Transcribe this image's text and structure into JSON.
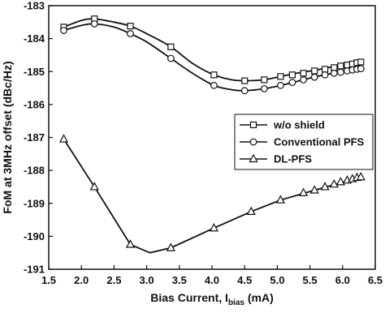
{
  "chart_data": {
    "type": "line",
    "xlabel": "Bias Current, I",
    "xlabel_sub": "bias",
    "xlabel_unit": " (mA)",
    "ylabel": "FoM at 3MHz offset (dBc/Hz)",
    "xlim": [
      1.5,
      6.5
    ],
    "ylim": [
      -191,
      -183
    ],
    "x_ticks": [
      1.5,
      2.0,
      2.5,
      3.0,
      3.5,
      4.0,
      4.5,
      5.0,
      5.5,
      6.0,
      6.5
    ],
    "x_tick_labels": [
      "1.5",
      "2.0",
      "2.5",
      "3.0",
      "3.5",
      "4.0",
      "4.5",
      "5.0",
      "5.5",
      "6.0",
      "6.5"
    ],
    "y_ticks": [
      -183,
      -184,
      -185,
      -186,
      -187,
      -188,
      -189,
      -190,
      -191
    ],
    "y_tick_labels": [
      "-183",
      "-184",
      "-185",
      "-186",
      "-187",
      "-188",
      "-189",
      "-190",
      "-191"
    ],
    "grid": false,
    "legend_position": "center-right",
    "series": [
      {
        "name": "w/o shield",
        "marker": "square",
        "curve": [
          [
            1.73,
            -183.65
          ],
          [
            2.0,
            -183.45
          ],
          [
            2.2,
            -183.4
          ],
          [
            2.5,
            -183.5
          ],
          [
            2.75,
            -183.62
          ],
          [
            3.0,
            -183.85
          ],
          [
            3.37,
            -184.25
          ],
          [
            3.7,
            -184.75
          ],
          [
            4.03,
            -185.1
          ],
          [
            4.3,
            -185.25
          ],
          [
            4.5,
            -185.28
          ],
          [
            4.8,
            -185.25
          ],
          [
            5.05,
            -185.15
          ],
          [
            5.3,
            -185.05
          ],
          [
            5.6,
            -184.95
          ],
          [
            6.0,
            -184.8
          ],
          [
            6.3,
            -184.7
          ]
        ],
        "markers": [
          [
            1.73,
            -183.65
          ],
          [
            2.2,
            -183.4
          ],
          [
            2.75,
            -183.62
          ],
          [
            3.37,
            -184.25
          ],
          [
            4.03,
            -185.1
          ],
          [
            4.5,
            -185.28
          ],
          [
            4.8,
            -185.25
          ],
          [
            5.05,
            -185.15
          ],
          [
            5.23,
            -185.1
          ],
          [
            5.4,
            -185.05
          ],
          [
            5.57,
            -184.98
          ],
          [
            5.73,
            -184.93
          ],
          [
            5.87,
            -184.88
          ],
          [
            5.97,
            -184.83
          ],
          [
            6.07,
            -184.8
          ],
          [
            6.15,
            -184.77
          ],
          [
            6.22,
            -184.73
          ],
          [
            6.28,
            -184.71
          ]
        ]
      },
      {
        "name": "Conventional PFS",
        "marker": "circle",
        "curve": [
          [
            1.73,
            -183.75
          ],
          [
            2.0,
            -183.6
          ],
          [
            2.2,
            -183.55
          ],
          [
            2.5,
            -183.65
          ],
          [
            2.75,
            -183.85
          ],
          [
            3.0,
            -184.1
          ],
          [
            3.37,
            -184.6
          ],
          [
            3.7,
            -185.05
          ],
          [
            4.03,
            -185.42
          ],
          [
            4.3,
            -185.55
          ],
          [
            4.5,
            -185.58
          ],
          [
            4.8,
            -185.52
          ],
          [
            5.05,
            -185.42
          ],
          [
            5.3,
            -185.3
          ],
          [
            5.6,
            -185.15
          ],
          [
            6.0,
            -185.0
          ],
          [
            6.3,
            -184.9
          ]
        ],
        "markers": [
          [
            1.73,
            -183.75
          ],
          [
            2.2,
            -183.55
          ],
          [
            2.75,
            -183.85
          ],
          [
            3.37,
            -184.6
          ],
          [
            4.03,
            -185.42
          ],
          [
            4.5,
            -185.58
          ],
          [
            4.8,
            -185.52
          ],
          [
            5.05,
            -185.42
          ],
          [
            5.23,
            -185.33
          ],
          [
            5.4,
            -185.25
          ],
          [
            5.57,
            -185.17
          ],
          [
            5.73,
            -185.1
          ],
          [
            5.87,
            -185.05
          ],
          [
            5.97,
            -185.02
          ],
          [
            6.07,
            -184.98
          ],
          [
            6.15,
            -184.95
          ],
          [
            6.22,
            -184.93
          ],
          [
            6.28,
            -184.91
          ]
        ]
      },
      {
        "name": "DL-PFS",
        "marker": "triangle",
        "curve": [
          [
            1.73,
            -187.05
          ],
          [
            2.2,
            -188.5
          ],
          [
            2.75,
            -190.25
          ],
          [
            3.05,
            -190.5
          ],
          [
            3.37,
            -190.35
          ],
          [
            4.03,
            -189.75
          ],
          [
            4.6,
            -189.25
          ],
          [
            5.05,
            -188.9
          ],
          [
            5.57,
            -188.6
          ],
          [
            6.3,
            -188.2
          ]
        ],
        "markers": [
          [
            1.73,
            -187.05
          ],
          [
            2.2,
            -188.5
          ],
          [
            2.75,
            -190.25
          ],
          [
            3.37,
            -190.35
          ],
          [
            4.03,
            -189.75
          ],
          [
            4.6,
            -189.25
          ],
          [
            5.05,
            -188.9
          ],
          [
            5.4,
            -188.68
          ],
          [
            5.57,
            -188.6
          ],
          [
            5.73,
            -188.5
          ],
          [
            5.87,
            -188.42
          ],
          [
            5.97,
            -188.35
          ],
          [
            6.07,
            -188.3
          ],
          [
            6.15,
            -188.26
          ],
          [
            6.22,
            -188.22
          ],
          [
            6.28,
            -188.2
          ]
        ]
      }
    ]
  },
  "colors": {
    "line": "#111111",
    "marker_fill": "#ffffff",
    "axis": "#111111"
  }
}
